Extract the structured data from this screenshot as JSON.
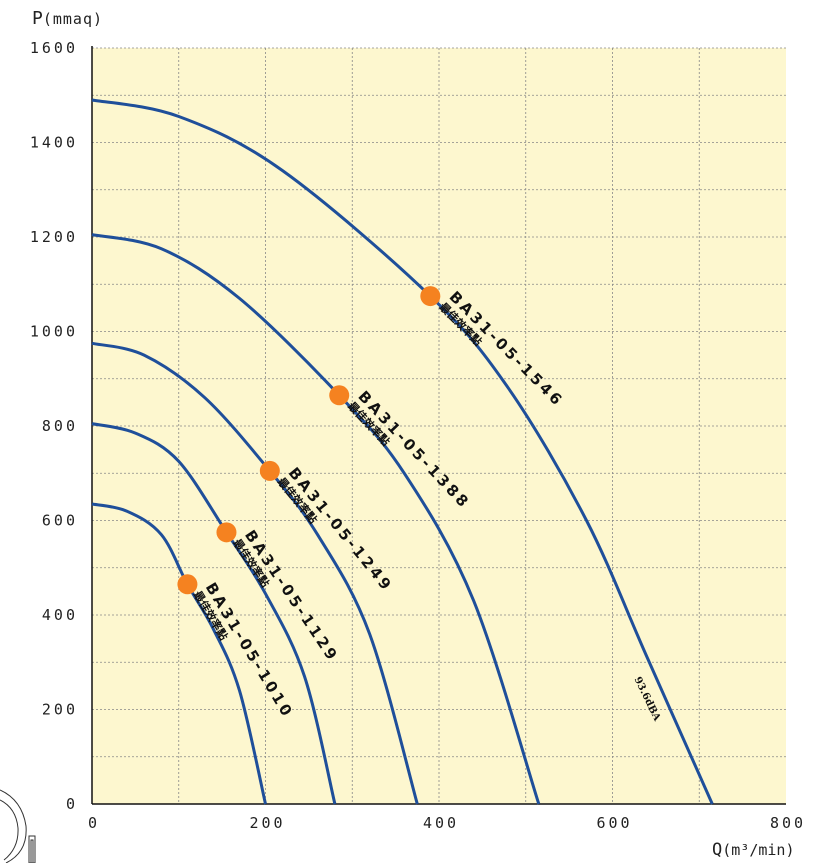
{
  "chart_data": {
    "type": "line",
    "ylabel": "P",
    "ylabel_unit": "(mmaq)",
    "xlabel": "Q",
    "xlabel_unit": "(m³/min)",
    "xlim": [
      0,
      800
    ],
    "ylim": [
      0,
      1600
    ],
    "x_ticks": [
      0,
      200,
      400,
      600,
      800
    ],
    "y_ticks": [
      0,
      200,
      400,
      600,
      800,
      1000,
      1200,
      1400,
      1600
    ],
    "x_tick_labels": [
      "0",
      "200",
      "400",
      "600",
      "800"
    ],
    "y_tick_labels": [
      "0",
      "200",
      "400",
      "600",
      "800",
      "1000",
      "1200",
      "1400",
      "1600"
    ],
    "grid": true,
    "background_color": "#fdf7cf",
    "curve_color": "#1f4f9a",
    "point_color": "#f58220",
    "series": [
      {
        "name": "BA31-05-1010",
        "sublabel": "最佳效率點",
        "points": [
          [
            0,
            635
          ],
          [
            40,
            620
          ],
          [
            80,
            570
          ],
          [
            110,
            465
          ],
          [
            140,
            370
          ],
          [
            170,
            240
          ],
          [
            200,
            0
          ]
        ],
        "best_point": [
          110,
          465
        ]
      },
      {
        "name": "BA31-05-1129",
        "sublabel": "最佳效率點",
        "points": [
          [
            0,
            805
          ],
          [
            50,
            785
          ],
          [
            100,
            725
          ],
          [
            155,
            575
          ],
          [
            200,
            445
          ],
          [
            245,
            270
          ],
          [
            280,
            0
          ]
        ],
        "best_point": [
          155,
          575
        ]
      },
      {
        "name": "BA31-05-1249",
        "sublabel": "最佳效率點",
        "points": [
          [
            0,
            975
          ],
          [
            60,
            950
          ],
          [
            130,
            860
          ],
          [
            205,
            705
          ],
          [
            260,
            570
          ],
          [
            320,
            360
          ],
          [
            375,
            0
          ]
        ],
        "best_point": [
          205,
          705
        ]
      },
      {
        "name": "BA31-05-1388",
        "sublabel": "最佳效率點",
        "points": [
          [
            0,
            1205
          ],
          [
            80,
            1175
          ],
          [
            170,
            1070
          ],
          [
            285,
            865
          ],
          [
            360,
            700
          ],
          [
            440,
            430
          ],
          [
            515,
            0
          ]
        ],
        "best_point": [
          285,
          865
        ]
      },
      {
        "name": "BA31-05-1546",
        "sublabel": "最佳效率點",
        "points": [
          [
            0,
            1490
          ],
          [
            100,
            1455
          ],
          [
            220,
            1340
          ],
          [
            390,
            1075
          ],
          [
            480,
            880
          ],
          [
            570,
            600
          ],
          [
            640,
            310
          ],
          [
            715,
            0
          ]
        ],
        "best_point": [
          390,
          1075
        ]
      }
    ],
    "annotations": [
      {
        "text": "93.6dBA",
        "x": 625,
        "y": 265
      }
    ]
  }
}
